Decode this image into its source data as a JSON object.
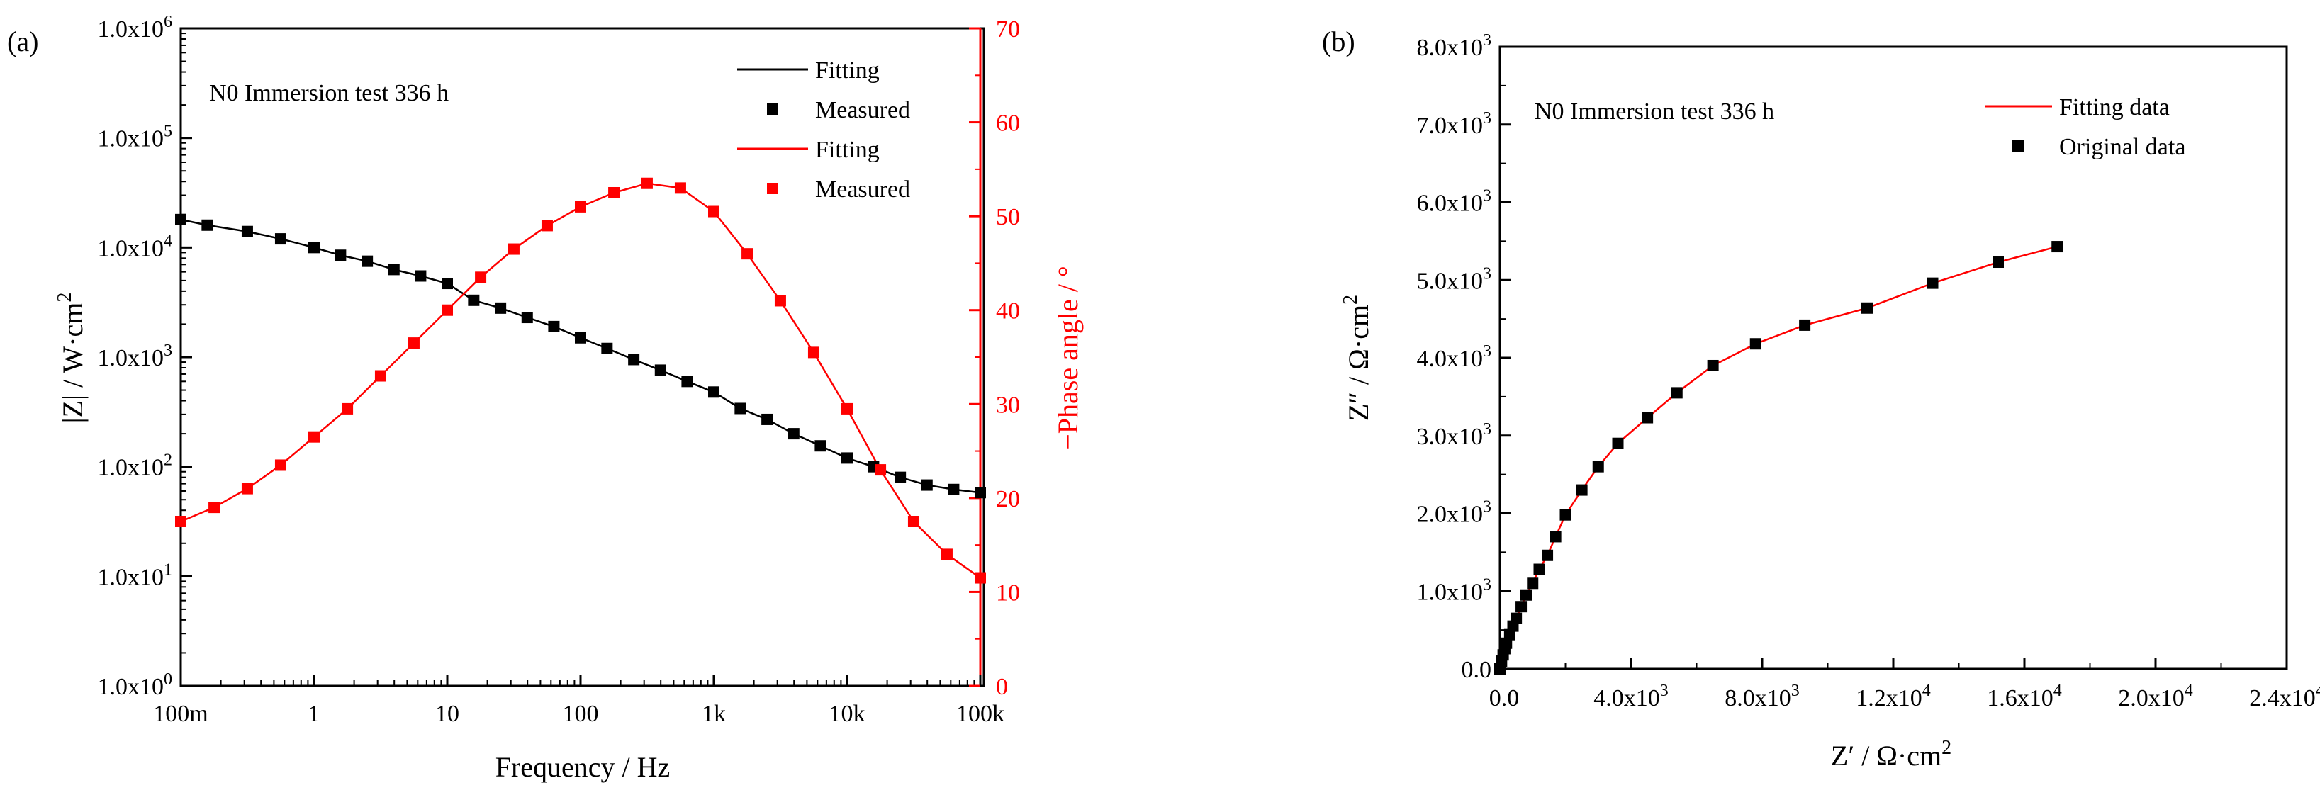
{
  "chart_data": [
    {
      "panel_label": "(a)",
      "type": "line",
      "annotation": "N0  Immersion test 336 h",
      "xlabel": "Frequency / Hz",
      "xscale": "log",
      "xlim": [
        0.1,
        100000
      ],
      "x_ticks": [
        0.1,
        1,
        10,
        100,
        1000,
        10000,
        100000
      ],
      "x_tick_labels": [
        "100m",
        "1",
        "10",
        "100",
        "1k",
        "10k",
        "100k"
      ],
      "ylabel_left": "|Z| / W·cm",
      "ylabel_left_sup": "2",
      "yscale_left": "log",
      "ylim_left": [
        1,
        1000000
      ],
      "y_left_ticks": [
        {
          "value": 1,
          "mant": "1.0x10",
          "exp": "0"
        },
        {
          "value": 10,
          "mant": "1.0x10",
          "exp": "1"
        },
        {
          "value": 100,
          "mant": "1.0x10",
          "exp": "2"
        },
        {
          "value": 1000,
          "mant": "1.0x10",
          "exp": "3"
        },
        {
          "value": 10000,
          "mant": "1.0x10",
          "exp": "4"
        },
        {
          "value": 100000,
          "mant": "1.0x10",
          "exp": "5"
        },
        {
          "value": 1000000,
          "mant": "1.0x10",
          "exp": "6"
        }
      ],
      "ylabel_right": "−Phase angle / °",
      "ylim_right": [
        0,
        70
      ],
      "y_right_ticks": [
        0,
        10,
        20,
        30,
        40,
        50,
        60,
        70
      ],
      "legend_position": "top-right",
      "legend": [
        {
          "label": "Fitting",
          "kind": "line",
          "color": "#000000"
        },
        {
          "label": "Measured",
          "kind": "marker",
          "color": "#000000"
        },
        {
          "label": "Fitting",
          "kind": "line",
          "color": "#ff0000"
        },
        {
          "label": "Measured",
          "kind": "marker",
          "color": "#ff0000"
        }
      ],
      "series": [
        {
          "name": "|Z|",
          "axis": "left",
          "color": "#000000",
          "x": [
            0.1,
            0.158,
            0.316,
            0.562,
            1,
            1.58,
            2.51,
            3.98,
            6.31,
            10,
            15.8,
            25.1,
            39.8,
            63.1,
            100,
            158,
            251,
            398,
            631,
            1000,
            1580,
            2510,
            3980,
            6310,
            10000,
            15800,
            25100,
            39800,
            63100,
            100000
          ],
          "values": [
            18000,
            16000,
            14000,
            12000,
            10000,
            8500,
            7500,
            6300,
            5500,
            4700,
            3300,
            2800,
            2300,
            1900,
            1500,
            1200,
            950,
            760,
            600,
            480,
            340,
            270,
            200,
            155,
            120,
            100,
            80,
            68,
            62,
            58
          ]
        },
        {
          "name": "-Phase angle",
          "axis": "right",
          "color": "#ff0000",
          "x": [
            0.1,
            0.178,
            0.316,
            0.562,
            1,
            1.78,
            3.16,
            5.62,
            10,
            17.8,
            31.6,
            56.2,
            100,
            178,
            316,
            562,
            1000,
            1780,
            3160,
            5620,
            10000,
            17800,
            31600,
            56200,
            100000
          ],
          "values": [
            17.5,
            19,
            21,
            23.5,
            26.5,
            29.5,
            33,
            36.5,
            40,
            43.5,
            46.5,
            49,
            51,
            52.5,
            53.5,
            53,
            50.5,
            46,
            41,
            35.5,
            29.5,
            23,
            17.5,
            14,
            11.5
          ]
        }
      ]
    },
    {
      "panel_label": "(b)",
      "type": "scatter",
      "annotation": "N0  Immersion test 336 h",
      "xlabel": "Z′ / Ω·cm",
      "xlabel_sup": "2",
      "ylabel": "Z″ / Ω·cm",
      "ylabel_sup": "2",
      "xlim": [
        0,
        24000
      ],
      "ylim": [
        0,
        8000
      ],
      "x_ticks": [
        {
          "value": 0,
          "label": "0.0",
          "exp": ""
        },
        {
          "value": 4000,
          "label": "4.0x10",
          "exp": "3"
        },
        {
          "value": 8000,
          "label": "8.0x10",
          "exp": "3"
        },
        {
          "value": 12000,
          "label": "1.2x10",
          "exp": "4"
        },
        {
          "value": 16000,
          "label": "1.6x10",
          "exp": "4"
        },
        {
          "value": 20000,
          "label": "2.0x10",
          "exp": "4"
        },
        {
          "value": 24000,
          "label": "2.4x10",
          "exp": "4"
        }
      ],
      "y_ticks": [
        {
          "value": 0,
          "label": "0.0",
          "exp": ""
        },
        {
          "value": 1000,
          "label": "1.0x10",
          "exp": "3"
        },
        {
          "value": 2000,
          "label": "2.0x10",
          "exp": "3"
        },
        {
          "value": 3000,
          "label": "3.0x10",
          "exp": "3"
        },
        {
          "value": 4000,
          "label": "4.0x10",
          "exp": "3"
        },
        {
          "value": 5000,
          "label": "5.0x10",
          "exp": "3"
        },
        {
          "value": 6000,
          "label": "6.0x10",
          "exp": "3"
        },
        {
          "value": 7000,
          "label": "7.0x10",
          "exp": "3"
        },
        {
          "value": 8000,
          "label": "8.0x10",
          "exp": "3"
        }
      ],
      "legend_position": "top-right",
      "legend": [
        {
          "label": "Fitting data",
          "kind": "line",
          "color": "#ff0000"
        },
        {
          "label": "Original data",
          "kind": "marker",
          "color": "#000000"
        }
      ],
      "series": [
        {
          "name": "Fitting data",
          "kind": "line",
          "color": "#ff0000",
          "x": [
            0,
            50,
            100,
            150,
            200,
            300,
            400,
            500,
            650,
            800,
            1000,
            1200,
            1450,
            1700,
            2000,
            2500,
            3000,
            3600,
            4500,
            5400,
            6500,
            7800,
            9300,
            11200,
            13200,
            15200,
            17000
          ],
          "values": [
            0,
            100,
            180,
            260,
            330,
            440,
            550,
            650,
            800,
            950,
            1100,
            1280,
            1460,
            1700,
            1980,
            2300,
            2600,
            2900,
            3230,
            3550,
            3900,
            4180,
            4420,
            4640,
            4960,
            5230,
            5430
          ]
        },
        {
          "name": "Original data",
          "kind": "marker",
          "color": "#000000",
          "x": [
            0,
            50,
            100,
            150,
            200,
            300,
            400,
            500,
            650,
            800,
            1000,
            1200,
            1450,
            1700,
            2000,
            2500,
            3000,
            3600,
            4500,
            5400,
            6500,
            7800,
            9300,
            11200,
            13200,
            15200,
            17000
          ],
          "values": [
            0,
            100,
            180,
            260,
            330,
            440,
            550,
            650,
            800,
            950,
            1100,
            1280,
            1460,
            1700,
            1980,
            2300,
            2600,
            2900,
            3230,
            3550,
            3900,
            4180,
            4420,
            4640,
            4960,
            5230,
            5430
          ]
        }
      ]
    }
  ]
}
